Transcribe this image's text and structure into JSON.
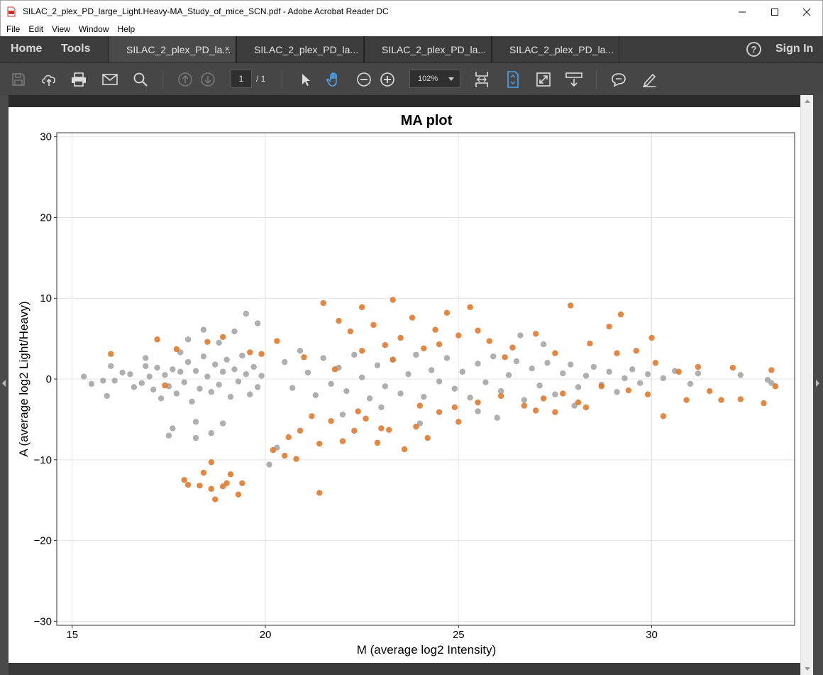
{
  "window": {
    "title": "SILAC_2_plex_PD_large_Light.Heavy-MA_Study_of_mice_SCN.pdf - Adobe Acrobat Reader DC"
  },
  "menu": [
    "File",
    "Edit",
    "View",
    "Window",
    "Help"
  ],
  "nav": {
    "home": "Home",
    "tools": "Tools",
    "sign_in": "Sign In",
    "help_glyph": "?"
  },
  "tabs": [
    {
      "label": "SILAC_2_plex_PD_la...",
      "active": true,
      "close": "×"
    },
    {
      "label": "SILAC_2_plex_PD_la...",
      "active": false
    },
    {
      "label": "SILAC_2_plex_PD_la...",
      "active": false
    },
    {
      "label": "SILAC_2_plex_PD_la...",
      "active": false
    }
  ],
  "toolbar": {
    "page_current": "1",
    "page_total": "/ 1",
    "zoom": "102%",
    "icons": [
      "save-icon",
      "upload-icon",
      "print-icon",
      "email-icon",
      "search-icon",
      "page-up-icon",
      "page-down-icon",
      "select-cursor-icon",
      "hand-tool-icon",
      "zoom-out-icon",
      "zoom-in-icon",
      "fit-width-icon",
      "fit-page-icon",
      "fullscreen-icon",
      "scroll-mode-icon",
      "comment-icon",
      "sign-icon"
    ]
  },
  "colors": {
    "significant": "#e07a2e",
    "nonsignificant": "#a6a6a6",
    "accent": "#4aa3f0"
  },
  "chart_data": {
    "type": "scatter",
    "title": "MA plot",
    "xlabel": "M (average log2 Intensity)",
    "ylabel": "A (average log2 Light/Heavy)",
    "xlim": [
      14.6,
      33.7
    ],
    "ylim": [
      -30.5,
      30.5
    ],
    "xticks": [
      15,
      20,
      25,
      30
    ],
    "yticks": [
      30,
      20,
      10,
      0,
      -10,
      -20,
      -30
    ],
    "grid": true,
    "legend": "none",
    "series": [
      {
        "points": [
          [
            15.5,
            -0.6
          ],
          [
            15.8,
            -0.2
          ],
          [
            15.9,
            -2.1
          ],
          [
            16.0,
            1.6
          ],
          [
            16.1,
            -0.2
          ],
          [
            16.3,
            0.8
          ],
          [
            16.5,
            0.6
          ],
          [
            16.6,
            -1.0
          ],
          [
            16.8,
            -0.5
          ],
          [
            16.9,
            1.6
          ],
          [
            17.0,
            0.3
          ],
          [
            17.1,
            -1.3
          ],
          [
            17.2,
            1.4
          ],
          [
            17.3,
            -2.4
          ],
          [
            17.4,
            0.5
          ],
          [
            17.5,
            -0.9
          ],
          [
            17.6,
            1.2
          ],
          [
            17.7,
            -1.8
          ],
          [
            17.8,
            0.9
          ],
          [
            17.9,
            -0.4
          ],
          [
            18.0,
            2.1
          ],
          [
            18.1,
            -2.8
          ],
          [
            18.2,
            1.0
          ],
          [
            18.3,
            -1.2
          ],
          [
            18.4,
            2.8
          ],
          [
            18.5,
            0.3
          ],
          [
            18.6,
            -1.6
          ],
          [
            18.7,
            1.8
          ],
          [
            18.8,
            -0.7
          ],
          [
            18.9,
            0.9
          ],
          [
            19.0,
            2.4
          ],
          [
            19.1,
            -2.2
          ],
          [
            19.2,
            1.2
          ],
          [
            19.3,
            -0.3
          ],
          [
            19.4,
            2.9
          ],
          [
            19.5,
            0.6
          ],
          [
            19.6,
            -1.9
          ],
          [
            19.7,
            1.5
          ],
          [
            19.8,
            -1.0
          ],
          [
            19.9,
            0.4
          ],
          [
            17.5,
            -7.0
          ],
          [
            17.6,
            -6.1
          ],
          [
            18.2,
            -5.3
          ],
          [
            18.2,
            -7.3
          ],
          [
            18.6,
            -6.7
          ],
          [
            18.9,
            -5.5
          ],
          [
            18.0,
            4.9
          ],
          [
            18.8,
            4.5
          ],
          [
            19.2,
            5.9
          ],
          [
            19.5,
            8.1
          ],
          [
            19.8,
            6.9
          ],
          [
            18.4,
            6.1
          ],
          [
            17.8,
            3.3
          ],
          [
            16.9,
            2.6
          ],
          [
            15.3,
            0.3
          ],
          [
            20.1,
            -10.6
          ],
          [
            20.3,
            -8.5
          ],
          [
            20.5,
            2.1
          ],
          [
            20.7,
            -1.1
          ],
          [
            20.9,
            3.5
          ],
          [
            21.1,
            0.8
          ],
          [
            21.3,
            -2.0
          ],
          [
            21.5,
            2.6
          ],
          [
            21.7,
            -0.6
          ],
          [
            21.9,
            1.4
          ],
          [
            22.1,
            -1.5
          ],
          [
            22.3,
            3.0
          ],
          [
            22.5,
            0.2
          ],
          [
            22.7,
            -2.4
          ],
          [
            22.9,
            1.7
          ],
          [
            23.1,
            -0.9
          ],
          [
            23.3,
            2.4
          ],
          [
            23.5,
            -1.8
          ],
          [
            23.7,
            0.6
          ],
          [
            23.9,
            3.0
          ],
          [
            24.1,
            -2.2
          ],
          [
            24.3,
            1.1
          ],
          [
            24.5,
            -0.3
          ],
          [
            24.7,
            2.6
          ],
          [
            24.9,
            -1.2
          ],
          [
            25.1,
            0.9
          ],
          [
            25.3,
            -2.3
          ],
          [
            25.5,
            1.9
          ],
          [
            25.7,
            -0.4
          ],
          [
            25.9,
            2.8
          ],
          [
            26.1,
            -1.5
          ],
          [
            26.3,
            0.5
          ],
          [
            26.5,
            2.2
          ],
          [
            26.7,
            -2.6
          ],
          [
            26.9,
            1.3
          ],
          [
            27.1,
            -0.8
          ],
          [
            27.3,
            2.0
          ],
          [
            27.5,
            -1.9
          ],
          [
            27.7,
            0.7
          ],
          [
            27.9,
            1.8
          ],
          [
            28.1,
            -1.0
          ],
          [
            28.3,
            0.4
          ],
          [
            28.5,
            1.5
          ],
          [
            28.7,
            -0.7
          ],
          [
            28.9,
            0.9
          ],
          [
            29.1,
            -1.6
          ],
          [
            29.3,
            0.1
          ],
          [
            29.5,
            1.2
          ],
          [
            29.7,
            -0.5
          ],
          [
            29.9,
            0.6
          ],
          [
            30.3,
            0.1
          ],
          [
            30.6,
            1.0
          ],
          [
            31.0,
            -0.6
          ],
          [
            31.2,
            0.7
          ],
          [
            32.3,
            0.5
          ],
          [
            33.0,
            -0.1
          ],
          [
            33.1,
            -0.5
          ],
          [
            25.5,
            -4.0
          ],
          [
            26.0,
            -4.8
          ],
          [
            24.0,
            -5.5
          ],
          [
            26.6,
            5.4
          ],
          [
            27.2,
            4.3
          ],
          [
            23.0,
            -3.5
          ],
          [
            22.0,
            -4.4
          ],
          [
            28.0,
            -3.3
          ]
        ]
      },
      {
        "points": [
          [
            16.0,
            3.1
          ],
          [
            17.2,
            4.9
          ],
          [
            17.7,
            3.7
          ],
          [
            17.4,
            -0.8
          ],
          [
            18.5,
            4.6
          ],
          [
            18.9,
            5.2
          ],
          [
            19.6,
            3.3
          ],
          [
            19.9,
            3.1
          ],
          [
            20.3,
            4.7
          ],
          [
            20.6,
            -7.2
          ],
          [
            20.9,
            -6.4
          ],
          [
            21.2,
            -4.6
          ],
          [
            21.4,
            -8.0
          ],
          [
            21.5,
            9.4
          ],
          [
            21.7,
            -5.2
          ],
          [
            21.9,
            7.2
          ],
          [
            22.0,
            -7.7
          ],
          [
            22.2,
            5.9
          ],
          [
            22.3,
            -6.4
          ],
          [
            22.5,
            8.9
          ],
          [
            22.6,
            -4.9
          ],
          [
            22.8,
            6.7
          ],
          [
            22.9,
            -7.9
          ],
          [
            23.1,
            4.2
          ],
          [
            23.2,
            -6.3
          ],
          [
            23.3,
            9.8
          ],
          [
            23.5,
            5.1
          ],
          [
            23.6,
            -8.7
          ],
          [
            23.8,
            7.6
          ],
          [
            23.9,
            -5.9
          ],
          [
            24.1,
            3.8
          ],
          [
            24.2,
            -7.3
          ],
          [
            24.4,
            6.1
          ],
          [
            24.5,
            -4.1
          ],
          [
            24.7,
            8.2
          ],
          [
            24.9,
            -3.5
          ],
          [
            25.0,
            5.4
          ],
          [
            25.3,
            8.9
          ],
          [
            25.5,
            -2.9
          ],
          [
            25.8,
            4.7
          ],
          [
            26.1,
            -2.1
          ],
          [
            26.4,
            3.9
          ],
          [
            26.7,
            -3.3
          ],
          [
            27.0,
            5.6
          ],
          [
            27.2,
            -2.4
          ],
          [
            27.5,
            3.2
          ],
          [
            27.7,
            -1.8
          ],
          [
            27.9,
            9.1
          ],
          [
            28.1,
            -2.9
          ],
          [
            28.4,
            4.4
          ],
          [
            28.7,
            -0.9
          ],
          [
            28.9,
            6.5
          ],
          [
            29.2,
            8.0
          ],
          [
            29.4,
            -1.4
          ],
          [
            29.6,
            3.5
          ],
          [
            29.9,
            -1.9
          ],
          [
            30.1,
            2.0
          ],
          [
            30.3,
            -4.6
          ],
          [
            30.7,
            0.9
          ],
          [
            30.9,
            -2.6
          ],
          [
            31.2,
            1.5
          ],
          [
            31.5,
            -1.5
          ],
          [
            31.8,
            -2.6
          ],
          [
            32.1,
            1.4
          ],
          [
            32.3,
            -2.5
          ],
          [
            32.9,
            -3.0
          ],
          [
            33.1,
            1.1
          ],
          [
            33.2,
            -0.9
          ],
          [
            30.0,
            5.1
          ],
          [
            29.1,
            3.2
          ],
          [
            18.3,
            -13.2
          ],
          [
            18.4,
            -11.6
          ],
          [
            18.6,
            -10.3
          ],
          [
            18.6,
            -13.6
          ],
          [
            18.7,
            -14.9
          ],
          [
            18.9,
            -13.3
          ],
          [
            19.0,
            -12.9
          ],
          [
            19.1,
            -11.8
          ],
          [
            19.3,
            -14.3
          ],
          [
            19.4,
            -12.9
          ],
          [
            18.0,
            -13.1
          ],
          [
            17.9,
            -12.5
          ],
          [
            21.4,
            -14.1
          ],
          [
            20.2,
            -8.8
          ],
          [
            20.5,
            -9.5
          ],
          [
            20.8,
            -9.9
          ],
          [
            22.4,
            -4.0
          ],
          [
            23.0,
            -6.1
          ],
          [
            24.0,
            -3.3
          ],
          [
            25.0,
            -5.3
          ],
          [
            21.0,
            2.7
          ],
          [
            21.8,
            1.2
          ],
          [
            22.5,
            3.5
          ],
          [
            23.3,
            2.4
          ],
          [
            24.5,
            4.3
          ],
          [
            25.5,
            6.0
          ],
          [
            26.2,
            2.7
          ],
          [
            27.0,
            -3.9
          ],
          [
            27.5,
            -4.1
          ],
          [
            28.3,
            -3.5
          ]
        ]
      }
    ]
  }
}
